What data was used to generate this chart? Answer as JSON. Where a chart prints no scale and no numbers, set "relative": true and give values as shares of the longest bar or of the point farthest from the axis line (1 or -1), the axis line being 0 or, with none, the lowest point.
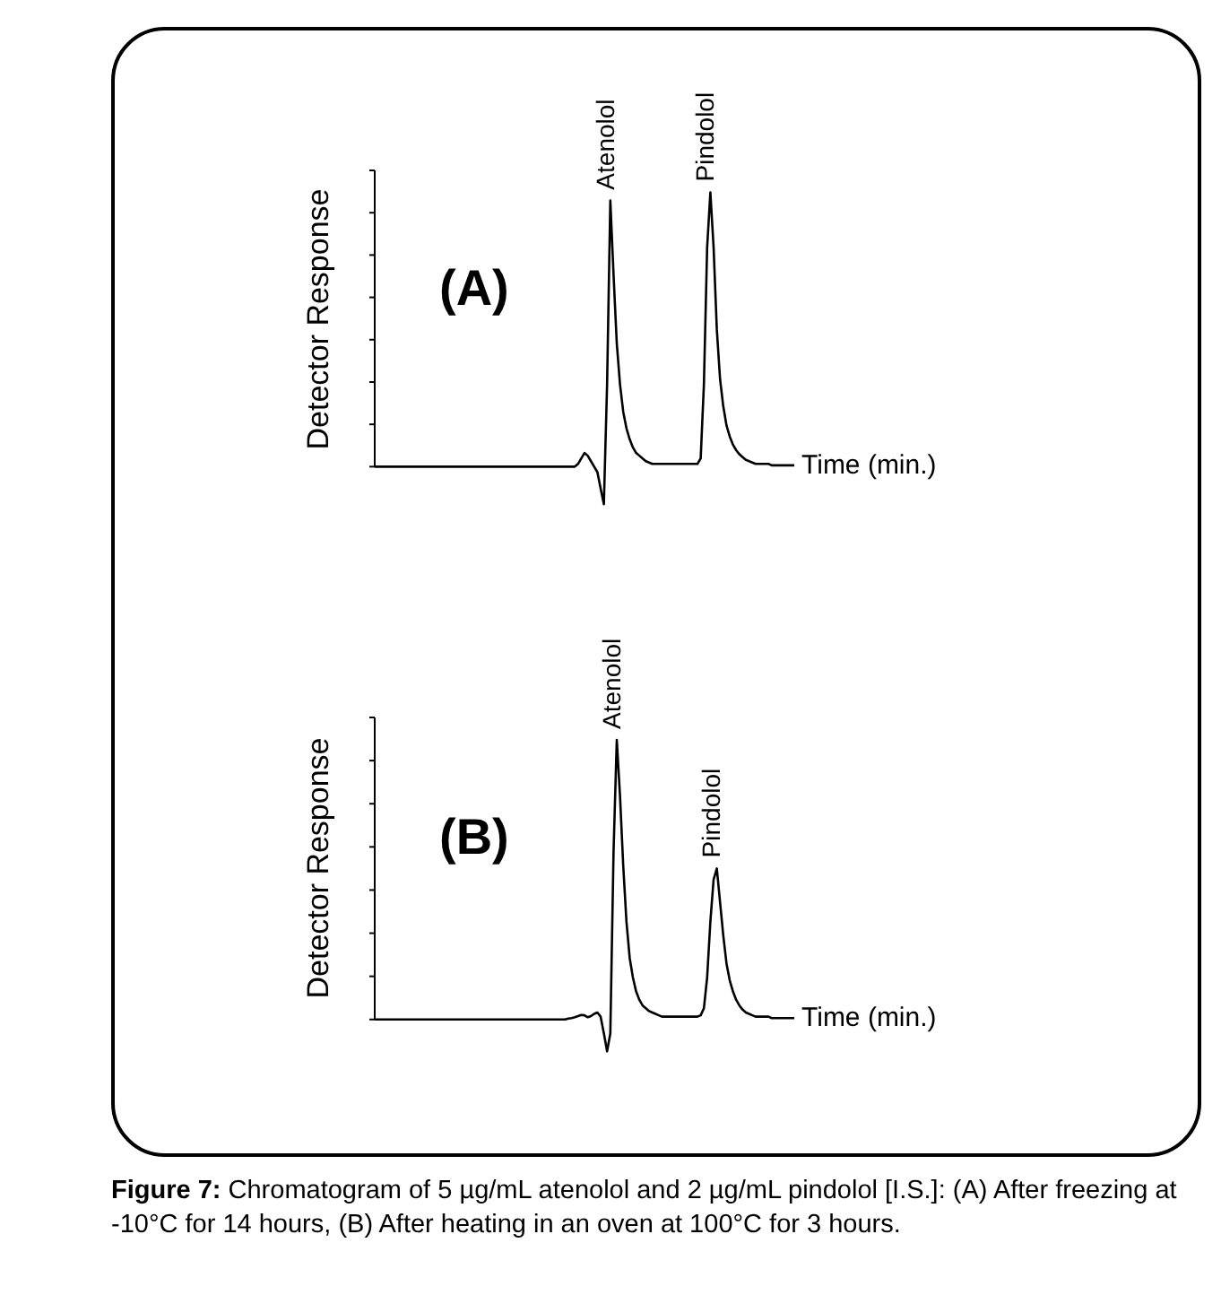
{
  "chart_data": [
    {
      "type": "line",
      "title": "(A)",
      "ylabel": "Detector Response",
      "xlabel": "Time (min.)",
      "relative": true,
      "color": "#000000",
      "categories": [
        null,
        null,
        null,
        null,
        null,
        null,
        null,
        null,
        null,
        null,
        null,
        null,
        null,
        null,
        null,
        null,
        null,
        null,
        null,
        null,
        null,
        null,
        null,
        null,
        null,
        null,
        null,
        null,
        null,
        null,
        null,
        null,
        null,
        null,
        null,
        null,
        null,
        null,
        null,
        null,
        null,
        null,
        null,
        null,
        null,
        null,
        null,
        null,
        null,
        null,
        null,
        null,
        null,
        null,
        null,
        null,
        null,
        null,
        null,
        null,
        null,
        null,
        null,
        null,
        null,
        null,
        null,
        null,
        null,
        null,
        null,
        null,
        null,
        null,
        null,
        null,
        null,
        null,
        null,
        null,
        null,
        null,
        null,
        null,
        null,
        null,
        null,
        null,
        null,
        null,
        null,
        null,
        null,
        null,
        null,
        null,
        null,
        null,
        null,
        null,
        null,
        null,
        null,
        null,
        null,
        null,
        null,
        null,
        null,
        null,
        null,
        null,
        null,
        null,
        null,
        null,
        null,
        null,
        null,
        null,
        null,
        null,
        null,
        null,
        null,
        null,
        null,
        null,
        null,
        null,
        null
      ],
      "values": [
        0,
        0,
        0,
        0,
        0,
        0,
        0,
        0,
        0,
        0,
        0,
        0,
        0,
        0,
        0,
        0,
        0,
        0,
        0,
        0,
        0,
        0,
        0,
        0,
        0,
        0,
        0,
        0,
        0,
        0,
        0,
        0,
        0,
        0,
        0,
        0,
        0,
        0,
        0,
        0,
        0,
        0,
        0,
        0,
        0,
        0,
        0,
        0,
        0,
        0,
        0,
        0,
        0,
        0,
        0,
        0,
        0,
        0,
        0,
        0,
        0,
        0,
        0,
        0.01,
        0.03,
        0.05,
        0.04,
        0.02,
        0,
        -0.02,
        -0.08,
        -0.137,
        0.3,
        0.97,
        0.7,
        0.45,
        0.3,
        0.2,
        0.14,
        0.1,
        0.07,
        0.05,
        0.04,
        0.03,
        0.02,
        0.015,
        0.01,
        0.01,
        0.01,
        0.01,
        0.01,
        0.01,
        0.01,
        0.01,
        0.01,
        0.01,
        0.01,
        0.01,
        0.01,
        0.01,
        0.01,
        0.03,
        0.3,
        0.8,
        1,
        0.8,
        0.5,
        0.32,
        0.22,
        0.15,
        0.11,
        0.08,
        0.06,
        0.045,
        0.035,
        0.025,
        0.02,
        0.015,
        0.01,
        0.01,
        0.01,
        0.01,
        0.01,
        0.005,
        0.005,
        0.005,
        0.005,
        0.005,
        0.005,
        0.005,
        0.005
      ],
      "annotations": [
        {
          "text": "Atenolol",
          "y": 0.97
        },
        {
          "text": "Pindolol",
          "y": 1
        }
      ]
    },
    {
      "type": "line",
      "title": "(B)",
      "ylabel": "Detector Response",
      "xlabel": "Time (min.)",
      "relative": true,
      "color": "#000000",
      "categories": [
        null,
        null,
        null,
        null,
        null,
        null,
        null,
        null,
        null,
        null,
        null,
        null,
        null,
        null,
        null,
        null,
        null,
        null,
        null,
        null,
        null,
        null,
        null,
        null,
        null,
        null,
        null,
        null,
        null,
        null,
        null,
        null,
        null,
        null,
        null,
        null,
        null,
        null,
        null,
        null,
        null,
        null,
        null,
        null,
        null,
        null,
        null,
        null,
        null,
        null,
        null,
        null,
        null,
        null,
        null,
        null,
        null,
        null,
        null,
        null,
        null,
        null,
        null,
        null,
        null,
        null,
        null,
        null,
        null,
        null,
        null,
        null,
        null,
        null,
        null,
        null,
        null,
        null,
        null,
        null,
        null,
        null,
        null,
        null,
        null,
        null,
        null,
        null,
        null,
        null,
        null,
        null,
        null,
        null,
        null,
        null,
        null,
        null,
        null,
        null,
        null,
        null,
        null,
        null,
        null,
        null,
        null,
        null,
        null,
        null,
        null,
        null,
        null,
        null,
        null,
        null,
        null,
        null,
        null,
        null,
        null,
        null,
        null,
        null,
        null,
        null,
        null,
        null,
        null,
        null,
        null
      ],
      "values": [
        0,
        0,
        0,
        0,
        0,
        0,
        0,
        0,
        0,
        0,
        0,
        0,
        0,
        0,
        0,
        0,
        0,
        0,
        0,
        0,
        0,
        0,
        0,
        0,
        0,
        0,
        0,
        0,
        0,
        0,
        0,
        0,
        0,
        0,
        0,
        0,
        0,
        0,
        0,
        0,
        0,
        0,
        0,
        0,
        0,
        0,
        0,
        0,
        0,
        0,
        0,
        0,
        0,
        0,
        0,
        0,
        0,
        0,
        0,
        0,
        0.003,
        0.005,
        0.008,
        0.012,
        0.016,
        0.015,
        0.008,
        0.012,
        0.02,
        0.025,
        0.01,
        -0.05,
        -0.114,
        -0.05,
        0.6,
        1,
        0.8,
        0.55,
        0.35,
        0.22,
        0.15,
        0.1,
        0.07,
        0.05,
        0.04,
        0.03,
        0.025,
        0.02,
        0.015,
        0.01,
        0.01,
        0.01,
        0.01,
        0.01,
        0.01,
        0.01,
        0.01,
        0.01,
        0.01,
        0.01,
        0.01,
        0.015,
        0.04,
        0.15,
        0.35,
        0.5,
        0.54,
        0.42,
        0.3,
        0.2,
        0.14,
        0.1,
        0.07,
        0.05,
        0.035,
        0.025,
        0.02,
        0.015,
        0.01,
        0.01,
        0.01,
        0.01,
        0.01,
        0.005,
        0.005,
        0.005,
        0.005,
        0.005,
        0.005,
        0.005,
        0.005
      ],
      "annotations": [
        {
          "text": "Atenolol",
          "y": 1
        },
        {
          "text": "Pindolol",
          "y": 0.54
        },
        "Figure 7:",
        "Chromatogram of 5 µg/mL atenolol and 2 µg/mL pindolol [I.S.]: (A) After freezing at -10°C for 14 hours, (B) After heating in an oven at 100°C for 3 hours."
      ]
    }
  ]
}
